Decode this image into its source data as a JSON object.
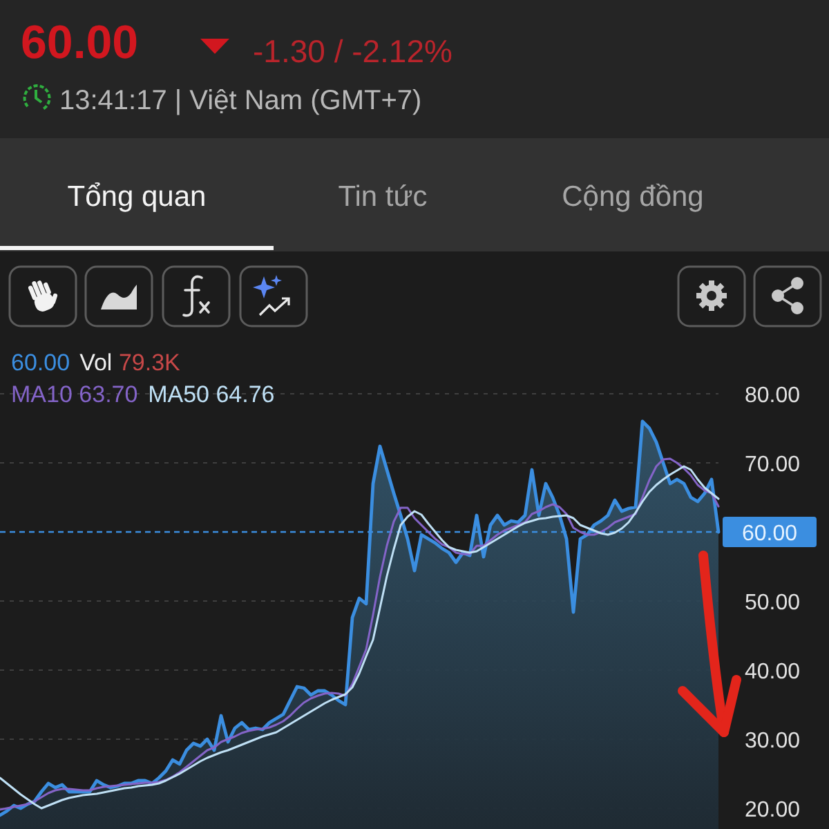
{
  "chart_data": {
    "type": "line",
    "title": "60.00",
    "subtitle": "-1.30 / -2.12%",
    "annotations": [
      "13:41:17 | Việt Nam (GMT+7)",
      "Tổng quan",
      "Tin tức",
      "Cộng đồng",
      "Vol 79.3K"
    ],
    "categories": [
      null,
      null,
      null,
      null,
      null,
      null,
      null,
      null,
      null,
      null,
      null,
      null,
      null,
      null,
      null,
      null,
      null,
      null,
      null,
      null,
      null,
      null,
      null,
      null,
      null,
      null,
      null,
      null,
      null,
      null,
      null,
      null,
      null,
      null,
      null,
      null,
      null,
      null,
      null,
      null,
      null,
      null,
      null,
      null,
      null,
      null,
      null,
      null,
      null,
      null,
      null,
      null,
      null,
      null,
      null,
      null,
      null,
      null,
      null,
      null,
      null,
      null,
      null,
      null,
      null,
      null,
      null,
      null,
      null,
      null,
      null,
      null,
      null,
      null,
      null,
      null,
      null,
      null,
      null,
      null,
      null,
      null,
      null,
      null,
      null,
      null,
      null,
      null,
      null,
      null,
      null,
      null,
      null,
      null,
      null,
      null,
      null,
      null,
      null,
      null,
      null,
      null,
      null,
      null,
      null
    ],
    "series": [
      {
        "name": "60.00",
        "type": "area",
        "color": "#3b8ee0",
        "values": [
          19.0,
          19.6,
          20.4,
          20.0,
          20.6,
          21.0,
          22.4,
          23.6,
          23.0,
          23.4,
          22.4,
          22.4,
          22.4,
          22.4,
          24.0,
          23.4,
          23.0,
          23.2,
          23.6,
          23.6,
          24.0,
          24.0,
          23.6,
          24.4,
          25.4,
          27.0,
          26.4,
          28.4,
          29.4,
          29.0,
          30.0,
          28.4,
          33.4,
          29.6,
          31.6,
          32.4,
          31.4,
          31.6,
          31.4,
          32.4,
          33.0,
          33.6,
          35.6,
          37.6,
          37.4,
          36.4,
          37.0,
          37.0,
          36.4,
          35.6,
          35.0,
          47.6,
          50.4,
          49.6,
          67.0,
          72.4,
          69.0,
          65.6,
          62.4,
          59.0,
          54.4,
          59.6,
          59.0,
          58.4,
          57.6,
          57.0,
          55.6,
          57.0,
          56.6,
          62.4,
          56.4,
          61.0,
          62.4,
          61.0,
          61.6,
          61.4,
          62.4,
          69.0,
          62.4,
          67.0,
          65.0,
          62.4,
          59.0,
          48.4,
          59.0,
          59.6,
          61.0,
          61.6,
          62.4,
          64.6,
          63.0,
          63.4,
          63.6,
          76.0,
          75.0,
          73.0,
          70.0,
          67.0,
          67.6,
          67.0,
          65.0,
          64.4,
          65.6,
          67.6,
          60.0
        ]
      },
      {
        "name": "MA10 63.70",
        "type": "line",
        "color": "#8464c8",
        "values": [
          19.8,
          20.0,
          20.2,
          20.4,
          20.6,
          21.0,
          21.6,
          22.2,
          22.6,
          22.8,
          22.8,
          22.7,
          22.6,
          22.6,
          22.9,
          23.1,
          23.2,
          23.3,
          23.4,
          23.5,
          23.6,
          23.7,
          23.7,
          23.8,
          24.1,
          24.6,
          25.2,
          26.0,
          26.8,
          27.6,
          28.4,
          28.8,
          29.6,
          30.0,
          30.4,
          30.9,
          31.2,
          31.4,
          31.5,
          31.7,
          32.1,
          32.6,
          33.4,
          34.4,
          35.3,
          35.9,
          36.3,
          36.6,
          36.7,
          36.6,
          36.3,
          38.0,
          40.5,
          43.0,
          48.0,
          53.5,
          58.0,
          61.5,
          63.5,
          63.5,
          62.0,
          61.0,
          60.0,
          59.0,
          58.2,
          57.8,
          57.0,
          56.8,
          56.8,
          58.0,
          58.0,
          58.8,
          59.6,
          60.2,
          60.6,
          61.0,
          61.4,
          62.6,
          63.0,
          63.6,
          64.0,
          63.6,
          62.6,
          60.6,
          60.0,
          59.6,
          59.6,
          60.0,
          60.6,
          61.4,
          61.8,
          62.2,
          62.6,
          65.0,
          67.5,
          69.5,
          70.5,
          70.6,
          70.0,
          69.2,
          68.2,
          66.8,
          66.0,
          65.6,
          63.7
        ]
      },
      {
        "name": "MA50 64.76",
        "type": "line",
        "color": "#bfe0f5",
        "values": [
          24.4,
          23.6,
          22.8,
          22.0,
          21.3,
          20.6,
          20.0,
          20.4,
          20.8,
          21.2,
          21.5,
          21.7,
          21.9,
          22.0,
          22.1,
          22.3,
          22.5,
          22.7,
          22.9,
          23.0,
          23.2,
          23.3,
          23.4,
          23.6,
          24.0,
          24.5,
          25.0,
          25.6,
          26.2,
          26.8,
          27.3,
          27.7,
          28.1,
          28.4,
          28.8,
          29.2,
          29.6,
          30.0,
          30.4,
          30.7,
          31.0,
          31.6,
          32.2,
          32.8,
          33.4,
          34.0,
          34.6,
          35.2,
          35.7,
          36.1,
          36.5,
          37.5,
          39.5,
          42.0,
          44.4,
          49.0,
          53.6,
          57.5,
          61.0,
          62.2,
          63.0,
          62.5,
          61.2,
          60.0,
          58.8,
          57.8,
          57.4,
          57.2,
          57.0,
          57.2,
          57.8,
          58.4,
          59.0,
          59.6,
          60.2,
          60.8,
          61.3,
          61.6,
          61.9,
          62.0,
          62.2,
          62.3,
          62.4,
          62.0,
          61.0,
          60.6,
          60.2,
          59.8,
          59.6,
          59.9,
          60.5,
          61.4,
          62.8,
          64.4,
          65.8,
          66.8,
          67.6,
          68.3,
          68.9,
          69.5,
          69.0,
          67.6,
          66.4,
          65.6,
          64.8
        ]
      }
    ],
    "ylim": [
      17,
      80
    ],
    "yticks": [
      {
        "value": 20,
        "label": "20.00"
      },
      {
        "value": 30,
        "label": "30.00"
      },
      {
        "value": 40,
        "label": "40.00"
      },
      {
        "value": 50,
        "label": "50.00"
      },
      {
        "value": 70,
        "label": "70.00"
      },
      {
        "value": 80,
        "label": "80.00"
      }
    ],
    "ref_lines": [
      {
        "axis": "y",
        "value": 60,
        "label": "60.00",
        "color": "#3b8ee0",
        "line_style": "dashed"
      }
    ],
    "grid": "y",
    "legend": "top left",
    "tick_labels": "y"
  }
}
